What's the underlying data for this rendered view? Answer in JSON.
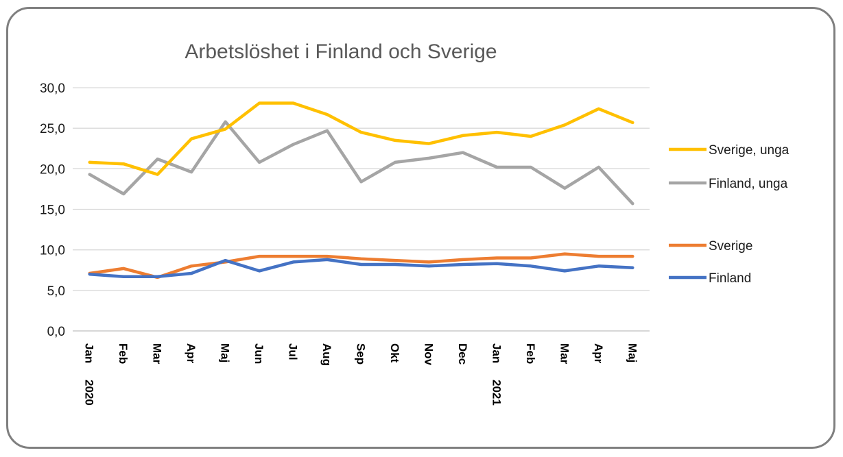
{
  "chart_data": {
    "type": "line",
    "title": "Arbetslöshet i Finland och Sverige",
    "xlabel": "",
    "ylabel": "",
    "ylim": [
      0,
      30
    ],
    "yticks": [
      "0,0",
      "5,0",
      "10,0",
      "15,0",
      "20,0",
      "25,0",
      "30,0"
    ],
    "categories": [
      "Jan",
      "Feb",
      "Mar",
      "Apr",
      "Maj",
      "Jun",
      "Jul",
      "Aug",
      "Sep",
      "Okt",
      "Nov",
      "Dec",
      "Jan",
      "Feb",
      "Mar",
      "Apr",
      "Maj"
    ],
    "year_labels": [
      {
        "index": 0,
        "text": "2020"
      },
      {
        "index": 12,
        "text": "2021"
      }
    ],
    "grid": true,
    "legend_position": "right",
    "series": [
      {
        "name": "Sverige, unga",
        "color": "#ffc000",
        "values": [
          20.8,
          20.6,
          19.3,
          23.7,
          24.9,
          28.1,
          28.1,
          26.7,
          24.5,
          23.5,
          23.1,
          24.1,
          24.5,
          24.0,
          25.4,
          27.4,
          25.7
        ]
      },
      {
        "name": "Finland, unga",
        "color": "#a5a5a5",
        "values": [
          19.3,
          16.9,
          21.2,
          19.6,
          25.8,
          20.8,
          23.0,
          24.7,
          18.4,
          20.8,
          21.3,
          22.0,
          20.2,
          20.2,
          17.6,
          20.2,
          15.7
        ]
      },
      {
        "name": "Sverige",
        "color": "#ed7d31",
        "values": [
          7.1,
          7.7,
          6.6,
          8.0,
          8.5,
          9.2,
          9.2,
          9.2,
          8.9,
          8.7,
          8.5,
          8.8,
          9.0,
          9.0,
          9.5,
          9.2,
          9.2
        ]
      },
      {
        "name": "Finland",
        "color": "#4472c4",
        "values": [
          7.0,
          6.7,
          6.7,
          7.1,
          8.7,
          7.4,
          8.5,
          8.8,
          8.2,
          8.2,
          8.0,
          8.2,
          8.3,
          8.0,
          7.4,
          8.0,
          7.8
        ]
      }
    ]
  }
}
